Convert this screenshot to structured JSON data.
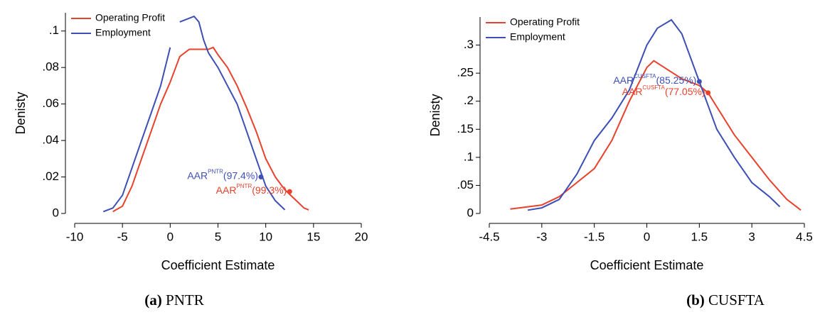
{
  "chart_data": [
    {
      "type": "line",
      "x_label": "Coefficient Estimate",
      "y_label": "Denisty",
      "caption": {
        "label": "(a)",
        "text": "PNTR"
      },
      "xlim": [
        -10,
        20
      ],
      "xticks": [
        -10,
        -5,
        0,
        5,
        10,
        15,
        20
      ],
      "ylim": [
        0,
        0.11
      ],
      "yticks": [
        0,
        {
          "value": 0.02,
          "label": ".02"
        },
        {
          "value": 0.04,
          "label": ".04"
        },
        {
          "value": 0.06,
          "label": ".06"
        },
        {
          "value": 0.08,
          "label": ".08"
        },
        {
          "value": 0.1,
          "label": ".1"
        }
      ],
      "legend": "top-left",
      "series": [
        {
          "name": "Operating Profit",
          "color": "#e8412c",
          "x": [
            -6,
            -5,
            -4,
            -3,
            -2,
            -1,
            0,
            1,
            2,
            3,
            4,
            4.5,
            5,
            6,
            7,
            8,
            9,
            10,
            11,
            12,
            13,
            14,
            14.5
          ],
          "values": [
            0.001,
            0.004,
            0.015,
            0.03,
            0.045,
            0.06,
            0.072,
            0.086,
            0.09,
            0.09,
            0.09,
            0.091,
            0.087,
            0.08,
            0.07,
            0.058,
            0.045,
            0.03,
            0.02,
            0.013,
            0.008,
            0.003,
            0.002
          ]
        },
        {
          "name": "Employment",
          "color": "#3d4fb5",
          "x": [
            -7,
            -6,
            -5,
            -4,
            -3,
            -2,
            -1,
            0,
            0.5,
            1,
            1.5,
            2,
            2.5,
            3,
            3.5,
            4,
            5,
            6,
            7,
            8,
            9,
            10,
            11,
            12
          ],
          "values": [
            0.001,
            0.003,
            0.01,
            0.025,
            0.04,
            0.055,
            0.07,
            0.091,
            null,
            0.105,
            0.106,
            0.107,
            0.108,
            0.105,
            0.095,
            0.088,
            0.08,
            0.07,
            0.06,
            0.045,
            0.03,
            0.015,
            0.007,
            0.002
          ]
        }
      ],
      "annotations": [
        {
          "text": "AAR",
          "sup": "PNTR",
          "value_text": "(97.4%)",
          "x": 9.5,
          "y": 0.02,
          "color": "#3d4fb5"
        },
        {
          "text": "AAR",
          "sup": "PNTR",
          "value_text": "(99.3%)",
          "x": 12.5,
          "y": 0.012,
          "color": "#e8412c"
        }
      ]
    },
    {
      "type": "line",
      "x_label": "Coefficient Estimate",
      "y_label": "Denisty",
      "caption": {
        "label": "(b)",
        "text": "CUSFTA"
      },
      "xlim": [
        -4.5,
        4.5
      ],
      "xticks": [
        -4.5,
        -3,
        -1.5,
        0,
        1.5,
        3,
        4.5
      ],
      "ylim": [
        0,
        0.35
      ],
      "yticks": [
        0,
        {
          "value": 0.05,
          "label": ".05"
        },
        {
          "value": 0.1,
          "label": ".1"
        },
        {
          "value": 0.15,
          "label": ".15"
        },
        {
          "value": 0.2,
          "label": ".2"
        },
        {
          "value": 0.25,
          "label": ".25"
        },
        {
          "value": 0.3,
          "label": ".3"
        }
      ],
      "legend": "top-left",
      "series": [
        {
          "name": "Operating Profit",
          "color": "#e8412c",
          "x": [
            -3.9,
            -3,
            -2.5,
            -2,
            -1.5,
            -1,
            -0.5,
            0,
            0.2,
            0.5,
            1,
            1.5,
            1.75,
            2,
            2.5,
            3,
            3.5,
            4,
            4.4
          ],
          "values": [
            0.008,
            0.015,
            0.03,
            0.055,
            0.08,
            0.13,
            0.2,
            0.26,
            0.272,
            0.26,
            0.24,
            0.228,
            0.215,
            0.19,
            0.14,
            0.1,
            0.06,
            0.025,
            0.006
          ]
        },
        {
          "name": "Employment",
          "color": "#3d4fb5",
          "x": [
            -3.4,
            -3,
            -2.5,
            -2,
            -1.5,
            -1,
            -0.5,
            0,
            0.3,
            0.7,
            1,
            1.5,
            2,
            2.5,
            3,
            3.5,
            3.8
          ],
          "values": [
            0.006,
            0.01,
            0.025,
            0.07,
            0.13,
            0.17,
            0.22,
            0.3,
            0.33,
            0.345,
            0.32,
            0.235,
            0.15,
            0.1,
            0.055,
            0.03,
            0.012
          ]
        }
      ],
      "annotations": [
        {
          "text": "AAR",
          "sup": "CUSFTA",
          "value_text": "(85.25%)",
          "x": 1.5,
          "y": 0.235,
          "color": "#3d4fb5"
        },
        {
          "text": "AAR",
          "sup": "CUSFTA",
          "value_text": "(77.05%)",
          "x": 1.75,
          "y": 0.215,
          "color": "#e8412c"
        }
      ]
    }
  ]
}
